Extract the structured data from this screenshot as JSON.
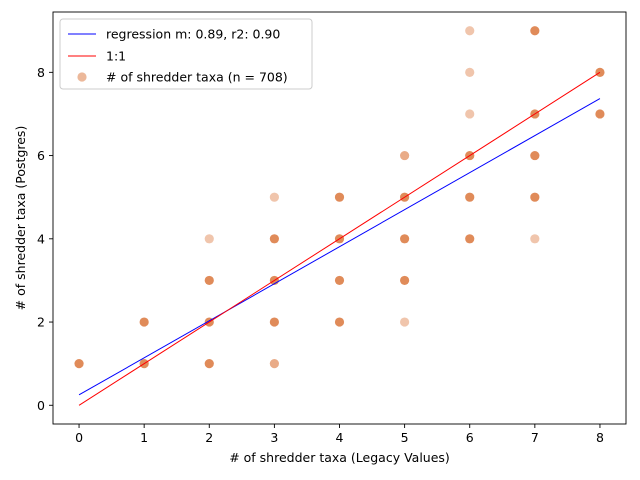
{
  "chart_data": {
    "type": "scatter",
    "title": "",
    "xlabel": "# of shredder taxa (Legacy Values)",
    "ylabel": "# of shredder taxa (Postgres)",
    "xlim": [
      -0.4,
      8.4
    ],
    "ylim": [
      -0.45,
      9.45
    ],
    "xticks": [
      0,
      1,
      2,
      3,
      4,
      5,
      6,
      7,
      8
    ],
    "yticks": [
      0,
      2,
      4,
      6,
      8
    ],
    "grid": false,
    "legend_position": "top-left",
    "series": [
      {
        "name": "regression m: 0.89, r2: 0.90",
        "kind": "line",
        "color": "#0000ff",
        "x": [
          0,
          8
        ],
        "y": [
          0.25,
          7.37
        ]
      },
      {
        "name": "1:1",
        "kind": "line",
        "color": "#ff0000",
        "x": [
          0,
          8
        ],
        "y": [
          0,
          8
        ]
      },
      {
        "name": "# of shredder taxa (n = 708)",
        "kind": "scatter",
        "color": "#dd7e47",
        "points": [
          {
            "x": 0,
            "y": 1,
            "density": "high"
          },
          {
            "x": 1,
            "y": 1,
            "density": "high"
          },
          {
            "x": 1,
            "y": 2,
            "density": "high"
          },
          {
            "x": 2,
            "y": 1,
            "density": "high"
          },
          {
            "x": 2,
            "y": 2,
            "density": "high"
          },
          {
            "x": 2,
            "y": 3,
            "density": "high"
          },
          {
            "x": 2,
            "y": 4,
            "density": "low"
          },
          {
            "x": 3,
            "y": 1,
            "density": "mid"
          },
          {
            "x": 3,
            "y": 2,
            "density": "high"
          },
          {
            "x": 3,
            "y": 3,
            "density": "high"
          },
          {
            "x": 3,
            "y": 4,
            "density": "high"
          },
          {
            "x": 3,
            "y": 5,
            "density": "low"
          },
          {
            "x": 4,
            "y": 2,
            "density": "high"
          },
          {
            "x": 4,
            "y": 3,
            "density": "high"
          },
          {
            "x": 4,
            "y": 4,
            "density": "high"
          },
          {
            "x": 4,
            "y": 5,
            "density": "high"
          },
          {
            "x": 5,
            "y": 2,
            "density": "low"
          },
          {
            "x": 5,
            "y": 3,
            "density": "high"
          },
          {
            "x": 5,
            "y": 4,
            "density": "high"
          },
          {
            "x": 5,
            "y": 5,
            "density": "high"
          },
          {
            "x": 5,
            "y": 6,
            "density": "mid"
          },
          {
            "x": 6,
            "y": 4,
            "density": "high"
          },
          {
            "x": 6,
            "y": 5,
            "density": "high"
          },
          {
            "x": 6,
            "y": 6,
            "density": "high"
          },
          {
            "x": 6,
            "y": 7,
            "density": "low"
          },
          {
            "x": 6,
            "y": 8,
            "density": "low"
          },
          {
            "x": 6,
            "y": 9,
            "density": "low"
          },
          {
            "x": 7,
            "y": 4,
            "density": "low"
          },
          {
            "x": 7,
            "y": 5,
            "density": "high"
          },
          {
            "x": 7,
            "y": 6,
            "density": "high"
          },
          {
            "x": 7,
            "y": 7,
            "density": "high"
          },
          {
            "x": 7,
            "y": 9,
            "density": "high"
          },
          {
            "x": 8,
            "y": 7,
            "density": "high"
          },
          {
            "x": 8,
            "y": 8,
            "density": "high"
          }
        ]
      }
    ]
  }
}
